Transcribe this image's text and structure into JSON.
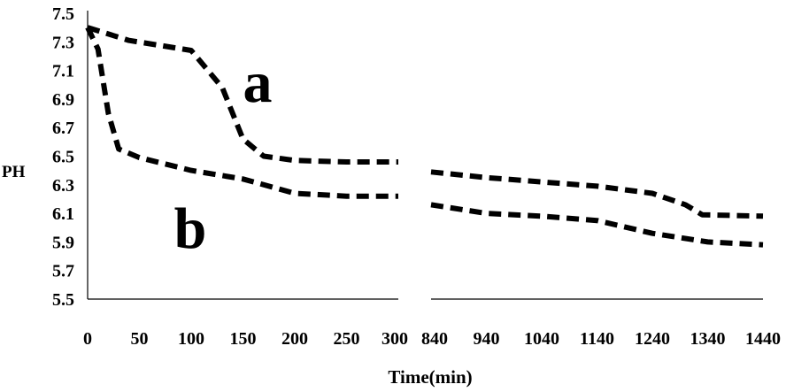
{
  "chart_data": {
    "type": "line",
    "title": "",
    "xlabel": "Time(min)",
    "ylabel": "PH",
    "ylim": [
      5.5,
      7.5
    ],
    "yticks": [
      7.5,
      7.3,
      7.1,
      6.9,
      6.7,
      6.5,
      6.3,
      6.1,
      5.9,
      5.7,
      5.5
    ],
    "x_axis_broken": true,
    "x_segments": [
      {
        "range": [
          0,
          300
        ],
        "ticks": [
          0,
          50,
          100,
          150,
          200,
          250,
          300
        ]
      },
      {
        "range": [
          840,
          1440
        ],
        "ticks": [
          840,
          940,
          1040,
          1140,
          1240,
          1340,
          1440
        ]
      }
    ],
    "grid": false,
    "line_style": "dashed",
    "line_color": "#000000",
    "series": [
      {
        "name": "a",
        "x": [
          0,
          40,
          100,
          130,
          150,
          170,
          200,
          250,
          300,
          840,
          940,
          1040,
          1140,
          1240,
          1300,
          1330,
          1440
        ],
        "y": [
          7.4,
          7.31,
          7.24,
          6.98,
          6.62,
          6.5,
          6.47,
          6.46,
          6.46,
          6.39,
          6.35,
          6.32,
          6.29,
          6.24,
          6.16,
          6.09,
          6.08
        ]
      },
      {
        "name": "b",
        "x": [
          0,
          10,
          20,
          30,
          50,
          100,
          150,
          200,
          250,
          300,
          840,
          940,
          1040,
          1140,
          1240,
          1340,
          1440
        ],
        "y": [
          7.4,
          7.25,
          6.8,
          6.55,
          6.49,
          6.4,
          6.34,
          6.24,
          6.22,
          6.22,
          6.16,
          6.1,
          6.08,
          6.05,
          5.96,
          5.9,
          5.88
        ]
      }
    ]
  }
}
